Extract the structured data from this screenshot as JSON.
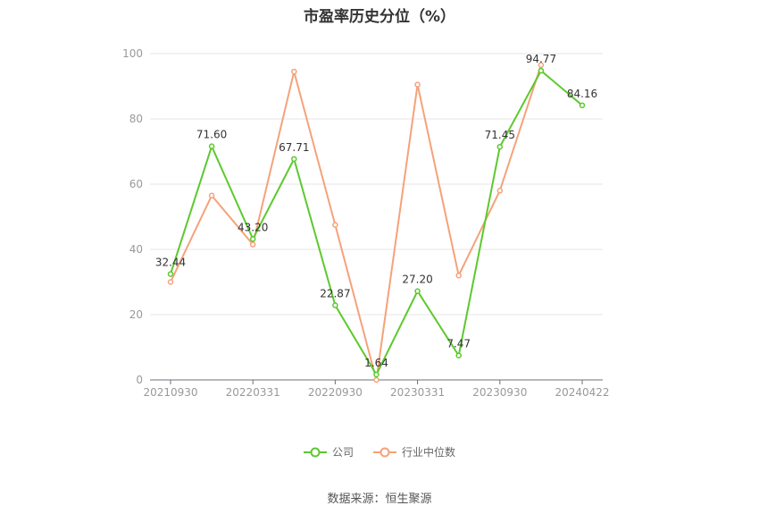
{
  "chart_data": {
    "type": "line",
    "title": "市盈率历史分位（%）",
    "ylim": [
      0,
      100
    ],
    "yticks": [
      0,
      20,
      40,
      60,
      80,
      100
    ],
    "x_tick_labels": [
      "20210930",
      "20220331",
      "20220930",
      "20230331",
      "20230930",
      "20240422"
    ],
    "x_count": 11,
    "x_tick_indices": [
      0,
      2,
      4,
      6,
      8,
      10
    ],
    "grid": true,
    "legend_position": "bottom-center",
    "series": [
      {
        "name": "公司",
        "color": "#5cc92e",
        "values": [
          32.44,
          71.6,
          43.2,
          67.71,
          22.87,
          1.64,
          27.2,
          7.47,
          71.45,
          94.77,
          84.16
        ],
        "labels": [
          "32.44",
          "71.60",
          "43.20",
          "67.71",
          "22.87",
          "1.64",
          "27.20",
          "7.47",
          "71.45",
          "94.77",
          "84.16"
        ]
      },
      {
        "name": "行业中位数",
        "color": "#f5a27a",
        "values": [
          30.0,
          56.5,
          41.5,
          94.5,
          47.5,
          0.0,
          90.5,
          32.0,
          58.0,
          96.5,
          null
        ]
      }
    ]
  },
  "source": "数据来源：恒生聚源"
}
